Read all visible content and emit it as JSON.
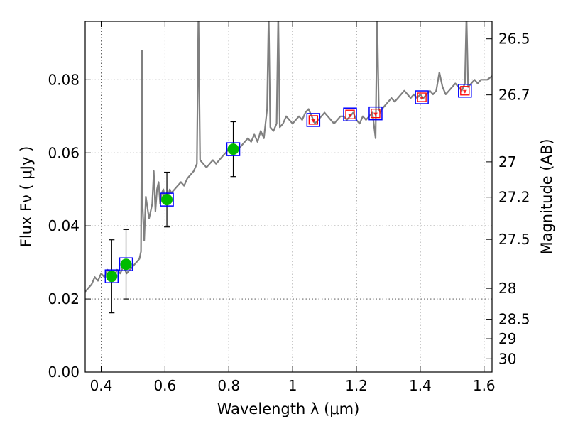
{
  "chart_data": {
    "type": "scatter",
    "xlabel": "Wavelength  λ (μm)",
    "ylabel": "Flux  Fν  ( μJy )",
    "ylabel_right": "Magnitude (AB)",
    "xlim": [
      0.35,
      1.625
    ],
    "ylim": [
      0,
      0.096
    ],
    "grid": true,
    "x_ticks": [
      {
        "value": 0.4,
        "label": "0.4"
      },
      {
        "value": 0.6,
        "label": "0.6"
      },
      {
        "value": 0.8,
        "label": "0.8"
      },
      {
        "value": 1.0,
        "label": "1"
      },
      {
        "value": 1.2,
        "label": "1.2"
      },
      {
        "value": 1.4,
        "label": "1.4"
      },
      {
        "value": 1.6,
        "label": "1.6"
      }
    ],
    "y_ticks": [
      {
        "value": 0.0,
        "label": "0.00"
      },
      {
        "value": 0.02,
        "label": "0.02"
      },
      {
        "value": 0.04,
        "label": "0.04"
      },
      {
        "value": 0.06,
        "label": "0.06"
      },
      {
        "value": 0.08,
        "label": "0.08"
      }
    ],
    "right_ticks": [
      {
        "value": 26.5,
        "label": "26.5"
      },
      {
        "value": 26.7,
        "label": "26.7"
      },
      {
        "value": 27.0,
        "label": "27"
      },
      {
        "value": 27.2,
        "label": "27.2"
      },
      {
        "value": 27.5,
        "label": "27.5"
      },
      {
        "value": 28.0,
        "label": "28"
      },
      {
        "value": 28.5,
        "label": "28.5"
      },
      {
        "value": 29.0,
        "label": "29"
      },
      {
        "value": 30.0,
        "label": "30"
      }
    ],
    "colors": {
      "model": "#808080",
      "observed": "#00bb00",
      "model_box": "#0000ff",
      "upper_limit": "#ff0000",
      "errorbar": "#000000"
    },
    "series": [
      {
        "kind": "model_spectrum",
        "x": [
          0.35,
          0.36,
          0.37,
          0.38,
          0.39,
          0.4,
          0.41,
          0.42,
          0.43,
          0.44,
          0.45,
          0.46,
          0.47,
          0.48,
          0.49,
          0.5,
          0.51,
          0.52,
          0.525,
          0.528,
          0.53,
          0.535,
          0.54,
          0.55,
          0.56,
          0.565,
          0.57,
          0.575,
          0.58,
          0.585,
          0.59,
          0.595,
          0.6,
          0.605,
          0.61,
          0.615,
          0.62,
          0.63,
          0.64,
          0.65,
          0.66,
          0.67,
          0.68,
          0.69,
          0.7,
          0.705,
          0.71,
          0.72,
          0.73,
          0.74,
          0.75,
          0.76,
          0.77,
          0.78,
          0.79,
          0.8,
          0.81,
          0.82,
          0.83,
          0.84,
          0.85,
          0.86,
          0.87,
          0.88,
          0.89,
          0.9,
          0.91,
          0.92,
          0.925,
          0.93,
          0.94,
          0.95,
          0.955,
          0.96,
          0.97,
          0.98,
          0.99,
          1.0,
          1.01,
          1.02,
          1.03,
          1.04,
          1.05,
          1.06,
          1.07,
          1.08,
          1.09,
          1.1,
          1.11,
          1.12,
          1.13,
          1.14,
          1.15,
          1.16,
          1.17,
          1.18,
          1.19,
          1.2,
          1.21,
          1.22,
          1.23,
          1.24,
          1.25,
          1.26,
          1.265,
          1.27,
          1.275,
          1.28,
          1.29,
          1.3,
          1.31,
          1.32,
          1.33,
          1.34,
          1.35,
          1.36,
          1.37,
          1.38,
          1.39,
          1.4,
          1.41,
          1.42,
          1.43,
          1.44,
          1.45,
          1.46,
          1.47,
          1.48,
          1.49,
          1.5,
          1.51,
          1.52,
          1.53,
          1.54,
          1.545,
          1.55,
          1.56,
          1.57,
          1.58,
          1.59,
          1.6,
          1.61,
          1.625
        ],
        "y": [
          0.022,
          0.023,
          0.024,
          0.026,
          0.025,
          0.027,
          0.026,
          0.028,
          0.027,
          0.026,
          0.028,
          0.027,
          0.029,
          0.027,
          0.028,
          0.029,
          0.03,
          0.031,
          0.033,
          0.088,
          0.045,
          0.036,
          0.048,
          0.042,
          0.046,
          0.055,
          0.044,
          0.05,
          0.052,
          0.046,
          0.049,
          0.05,
          0.047,
          0.049,
          0.048,
          0.05,
          0.049,
          0.05,
          0.051,
          0.052,
          0.051,
          0.053,
          0.054,
          0.055,
          0.057,
          0.098,
          0.058,
          0.057,
          0.056,
          0.057,
          0.058,
          0.057,
          0.058,
          0.059,
          0.06,
          0.061,
          0.06,
          0.062,
          0.061,
          0.062,
          0.063,
          0.064,
          0.063,
          0.065,
          0.063,
          0.066,
          0.064,
          0.072,
          0.098,
          0.067,
          0.066,
          0.068,
          0.098,
          0.067,
          0.068,
          0.07,
          0.069,
          0.068,
          0.069,
          0.07,
          0.069,
          0.071,
          0.072,
          0.07,
          0.068,
          0.069,
          0.07,
          0.071,
          0.07,
          0.069,
          0.068,
          0.069,
          0.07,
          0.07,
          0.069,
          0.07,
          0.071,
          0.069,
          0.068,
          0.07,
          0.069,
          0.07,
          0.071,
          0.064,
          0.098,
          0.072,
          0.071,
          0.072,
          0.073,
          0.074,
          0.075,
          0.074,
          0.075,
          0.076,
          0.077,
          0.076,
          0.075,
          0.076,
          0.075,
          0.076,
          0.075,
          0.076,
          0.077,
          0.076,
          0.077,
          0.082,
          0.078,
          0.076,
          0.077,
          0.078,
          0.079,
          0.078,
          0.077,
          0.079,
          0.098,
          0.078,
          0.079,
          0.08,
          0.079,
          0.08,
          0.08,
          0.08,
          0.081
        ]
      },
      {
        "kind": "observed_with_errors",
        "x": [
          0.433,
          0.478,
          0.606,
          0.814
        ],
        "y": [
          0.0262,
          0.0295,
          0.0472,
          0.061
        ],
        "yerr_low": [
          0.01,
          0.0095,
          0.0075,
          0.0075
        ],
        "yerr_high": [
          0.01,
          0.0095,
          0.0075,
          0.0075
        ]
      },
      {
        "kind": "model_photometry",
        "x": [
          0.433,
          0.478,
          0.606,
          0.814,
          1.065,
          1.18,
          1.26,
          1.405,
          1.54
        ],
        "y": [
          0.0262,
          0.0295,
          0.0472,
          0.061,
          0.069,
          0.0705,
          0.0708,
          0.0752,
          0.077
        ]
      },
      {
        "kind": "upper_limits",
        "x": [
          1.065,
          1.18,
          1.26,
          1.405,
          1.54
        ],
        "y": [
          0.069,
          0.0705,
          0.0708,
          0.0752,
          0.077
        ]
      }
    ]
  }
}
